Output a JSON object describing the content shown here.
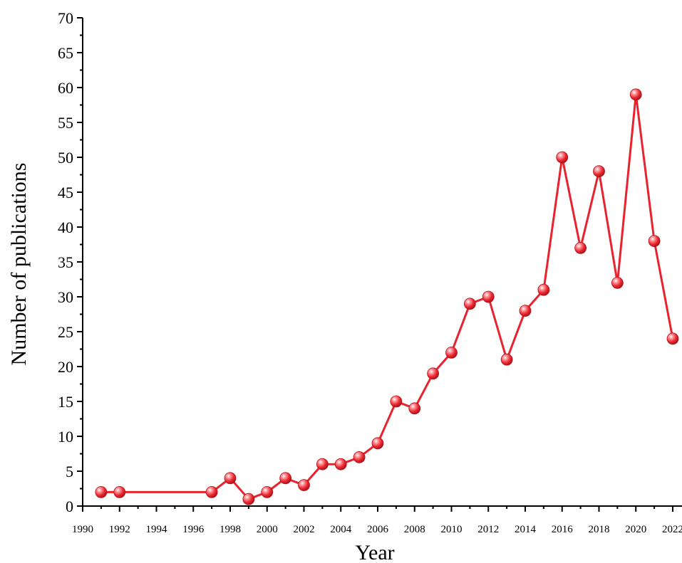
{
  "chart_data": {
    "type": "line",
    "xlabel": "Year",
    "ylabel": "Number of publications",
    "xlim": [
      1990,
      2022
    ],
    "ylim": [
      0,
      70
    ],
    "x_ticks": [
      1990,
      1992,
      1994,
      1996,
      1998,
      2000,
      2002,
      2004,
      2006,
      2008,
      2010,
      2012,
      2014,
      2016,
      2018,
      2020,
      2022
    ],
    "y_ticks": [
      0,
      5,
      10,
      15,
      20,
      25,
      30,
      35,
      40,
      45,
      50,
      55,
      60,
      65,
      70
    ],
    "grid": false,
    "legend": "none",
    "series": [
      {
        "color": "#e8232e",
        "marker": "sphere",
        "x": [
          1991,
          1992,
          1997,
          1998,
          1999,
          2000,
          2001,
          2002,
          2003,
          2004,
          2005,
          2006,
          2007,
          2008,
          2009,
          2010,
          2011,
          2012,
          2013,
          2014,
          2015,
          2016,
          2017,
          2018,
          2019,
          2020,
          2021,
          2022
        ],
        "y": [
          2,
          2,
          2,
          4,
          1,
          2,
          4,
          3,
          6,
          6,
          7,
          9,
          15,
          14,
          19,
          22,
          29,
          30,
          21,
          28,
          31,
          50,
          37,
          48,
          32,
          59,
          38,
          24
        ]
      }
    ]
  }
}
